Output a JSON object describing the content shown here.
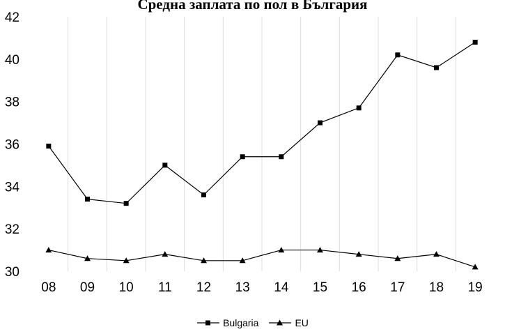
{
  "chart_data": {
    "type": "line",
    "title": "Средна заплата по пол в България",
    "xlabel": "",
    "ylabel": "",
    "categories": [
      "08",
      "09",
      "10",
      "11",
      "12",
      "13",
      "14",
      "15",
      "16",
      "17",
      "18",
      "19"
    ],
    "ylim": [
      30,
      42
    ],
    "yticks": [
      30,
      32,
      34,
      36,
      38,
      40,
      42
    ],
    "grid": "vertical",
    "legend_position": "bottom",
    "series": [
      {
        "name": "Bulgaria",
        "marker": "square",
        "color": "#000000",
        "values": [
          35.9,
          33.4,
          33.2,
          35.0,
          33.6,
          35.4,
          35.4,
          37.0,
          37.7,
          40.2,
          39.6,
          40.8
        ]
      },
      {
        "name": "EU",
        "marker": "triangle",
        "color": "#000000",
        "values": [
          31.0,
          30.6,
          30.5,
          30.8,
          30.5,
          30.5,
          31.0,
          31.0,
          30.8,
          30.6,
          30.8,
          30.2
        ]
      }
    ]
  }
}
